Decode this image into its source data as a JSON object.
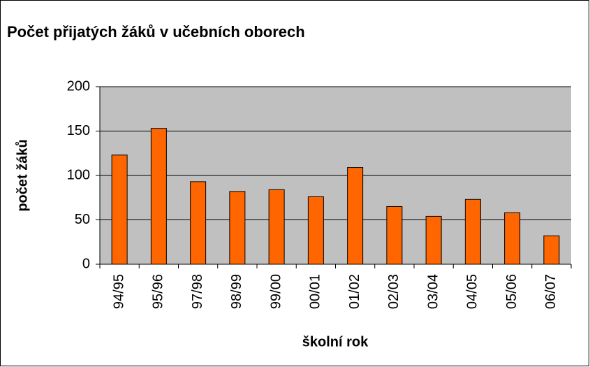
{
  "chart_data": {
    "type": "bar",
    "title": "Počet přijatých žáků v učebních oborech",
    "x_label": "školní rok",
    "y_label": "počet žáků",
    "categories": [
      "94/95",
      "95/96",
      "97/98",
      "98/99",
      "99/00",
      "00/01",
      "01/02",
      "02/03",
      "03/04",
      "04/05",
      "05/06",
      "06/07"
    ],
    "values": [
      123,
      153,
      93,
      82,
      84,
      76,
      109,
      65,
      54,
      73,
      58,
      32
    ],
    "color": "#ff6600",
    "ylim": [
      0,
      200
    ],
    "yticks": [
      0,
      50,
      100,
      150,
      200
    ],
    "grid": true
  }
}
